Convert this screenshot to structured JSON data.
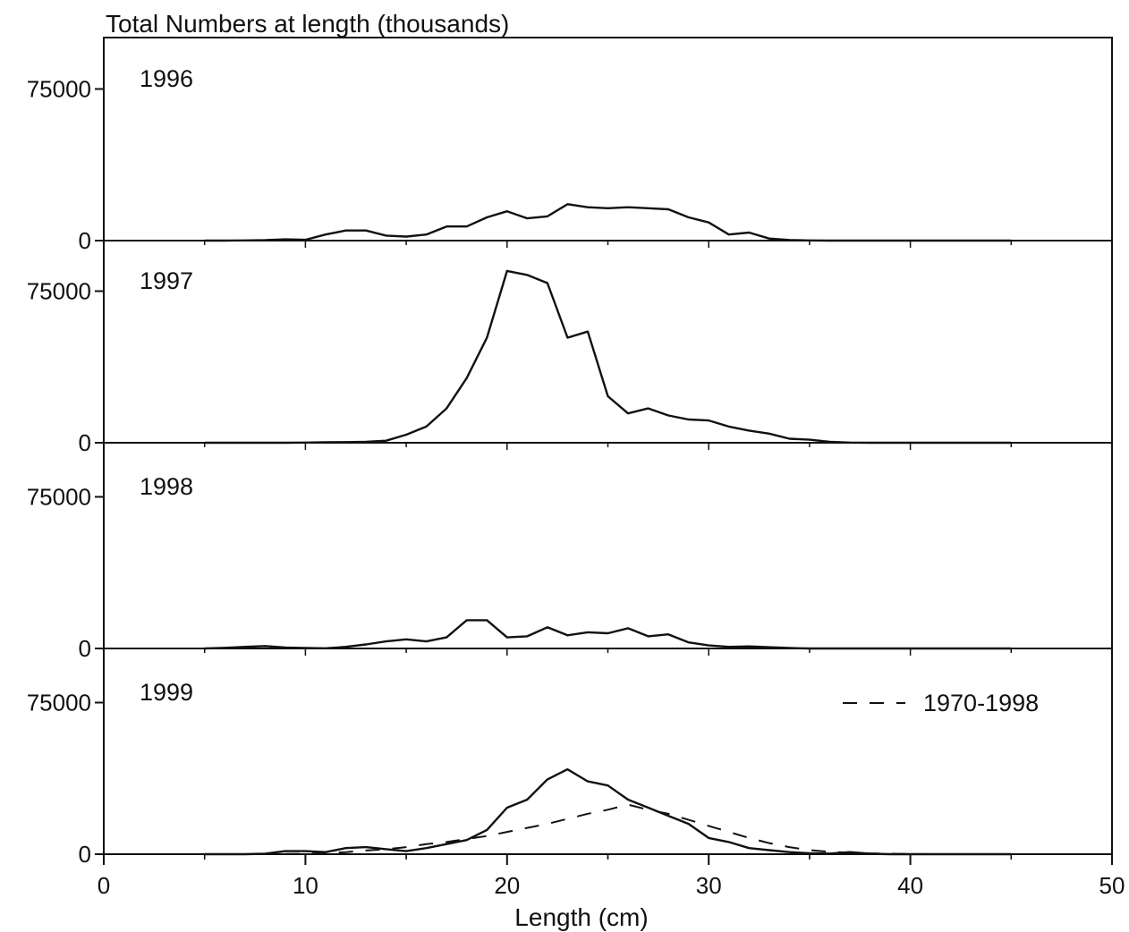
{
  "chart_data": {
    "type": "line",
    "title": "Total Numbers at length (thousands)",
    "xlabel": "Length (cm)",
    "xlim": [
      0,
      50
    ],
    "x_ticks": [
      0,
      10,
      20,
      30,
      40,
      50
    ],
    "ylim": [
      0,
      100000
    ],
    "y_ticks": [
      0,
      75000
    ],
    "grid": false,
    "legend": {
      "position": "right",
      "label": "1970-1998",
      "style": "dashed"
    },
    "x": [
      5,
      6,
      7,
      8,
      9,
      10,
      11,
      12,
      13,
      14,
      15,
      16,
      17,
      18,
      19,
      20,
      21,
      22,
      23,
      24,
      25,
      26,
      27,
      28,
      29,
      30,
      31,
      32,
      33,
      34,
      35,
      36,
      37,
      38,
      39,
      40,
      41,
      42,
      43,
      44,
      45
    ],
    "panels": [
      {
        "year": "1996",
        "series": [
          {
            "values": [
              0,
              0,
              100,
              200,
              600,
              400,
              3000,
              5000,
              5000,
              2500,
              2000,
              3000,
              7000,
              7000,
              11500,
              14500,
              11000,
              12000,
              18000,
              16500,
              16000,
              16500,
              16000,
              15500,
              11500,
              9000,
              3000,
              4000,
              1000,
              300,
              100,
              0,
              0,
              0,
              0,
              0,
              0,
              0,
              0,
              0,
              0
            ]
          }
        ]
      },
      {
        "year": "1997",
        "series": [
          {
            "values": [
              0,
              0,
              0,
              0,
              0,
              100,
              200,
              300,
              500,
              1000,
              4000,
              8000,
              17000,
              32000,
              52000,
              85000,
              83000,
              79000,
              52000,
              55000,
              23000,
              14500,
              17000,
              13500,
              11500,
              11000,
              8000,
              6000,
              4500,
              2000,
              1500,
              500,
              100,
              0,
              0,
              0,
              0,
              0,
              0,
              0,
              0
            ]
          }
        ]
      },
      {
        "year": "1998",
        "series": [
          {
            "values": [
              0,
              300,
              800,
              1200,
              500,
              200,
              100,
              800,
              2000,
              3500,
              4500,
              3500,
              5500,
              14000,
              14000,
              5500,
              6000,
              10500,
              6500,
              8000,
              7500,
              10000,
              6000,
              7000,
              3000,
              1500,
              800,
              1000,
              600,
              200,
              0,
              0,
              0,
              0,
              0,
              0,
              0,
              0,
              0,
              0,
              0
            ]
          }
        ]
      },
      {
        "year": "1999",
        "series": [
          {
            "values": [
              0,
              0,
              0,
              200,
              1500,
              1500,
              1000,
              3000,
              3500,
              2500,
              1500,
              3000,
              5000,
              7000,
              12000,
              23000,
              27000,
              37000,
              42000,
              36000,
              34000,
              27000,
              23000,
              19000,
              15000,
              8000,
              6000,
              3000,
              2000,
              1000,
              500,
              300,
              1000,
              200,
              0,
              0,
              0,
              0,
              0,
              0,
              0
            ]
          },
          {
            "name": "1970-1998",
            "style": "dashed",
            "values": [
              0,
              0,
              0,
              0,
              100,
              200,
              500,
              1000,
              1800,
              2500,
              3500,
              5000,
              6000,
              7500,
              9000,
              11000,
              13000,
              15000,
              17500,
              20000,
              22000,
              24500,
              22000,
              20000,
              17000,
              14000,
              11000,
              8000,
              5500,
              3500,
              2000,
              1200,
              700,
              400,
              200,
              100,
              0,
              0,
              0,
              0,
              0
            ]
          }
        ]
      }
    ]
  }
}
